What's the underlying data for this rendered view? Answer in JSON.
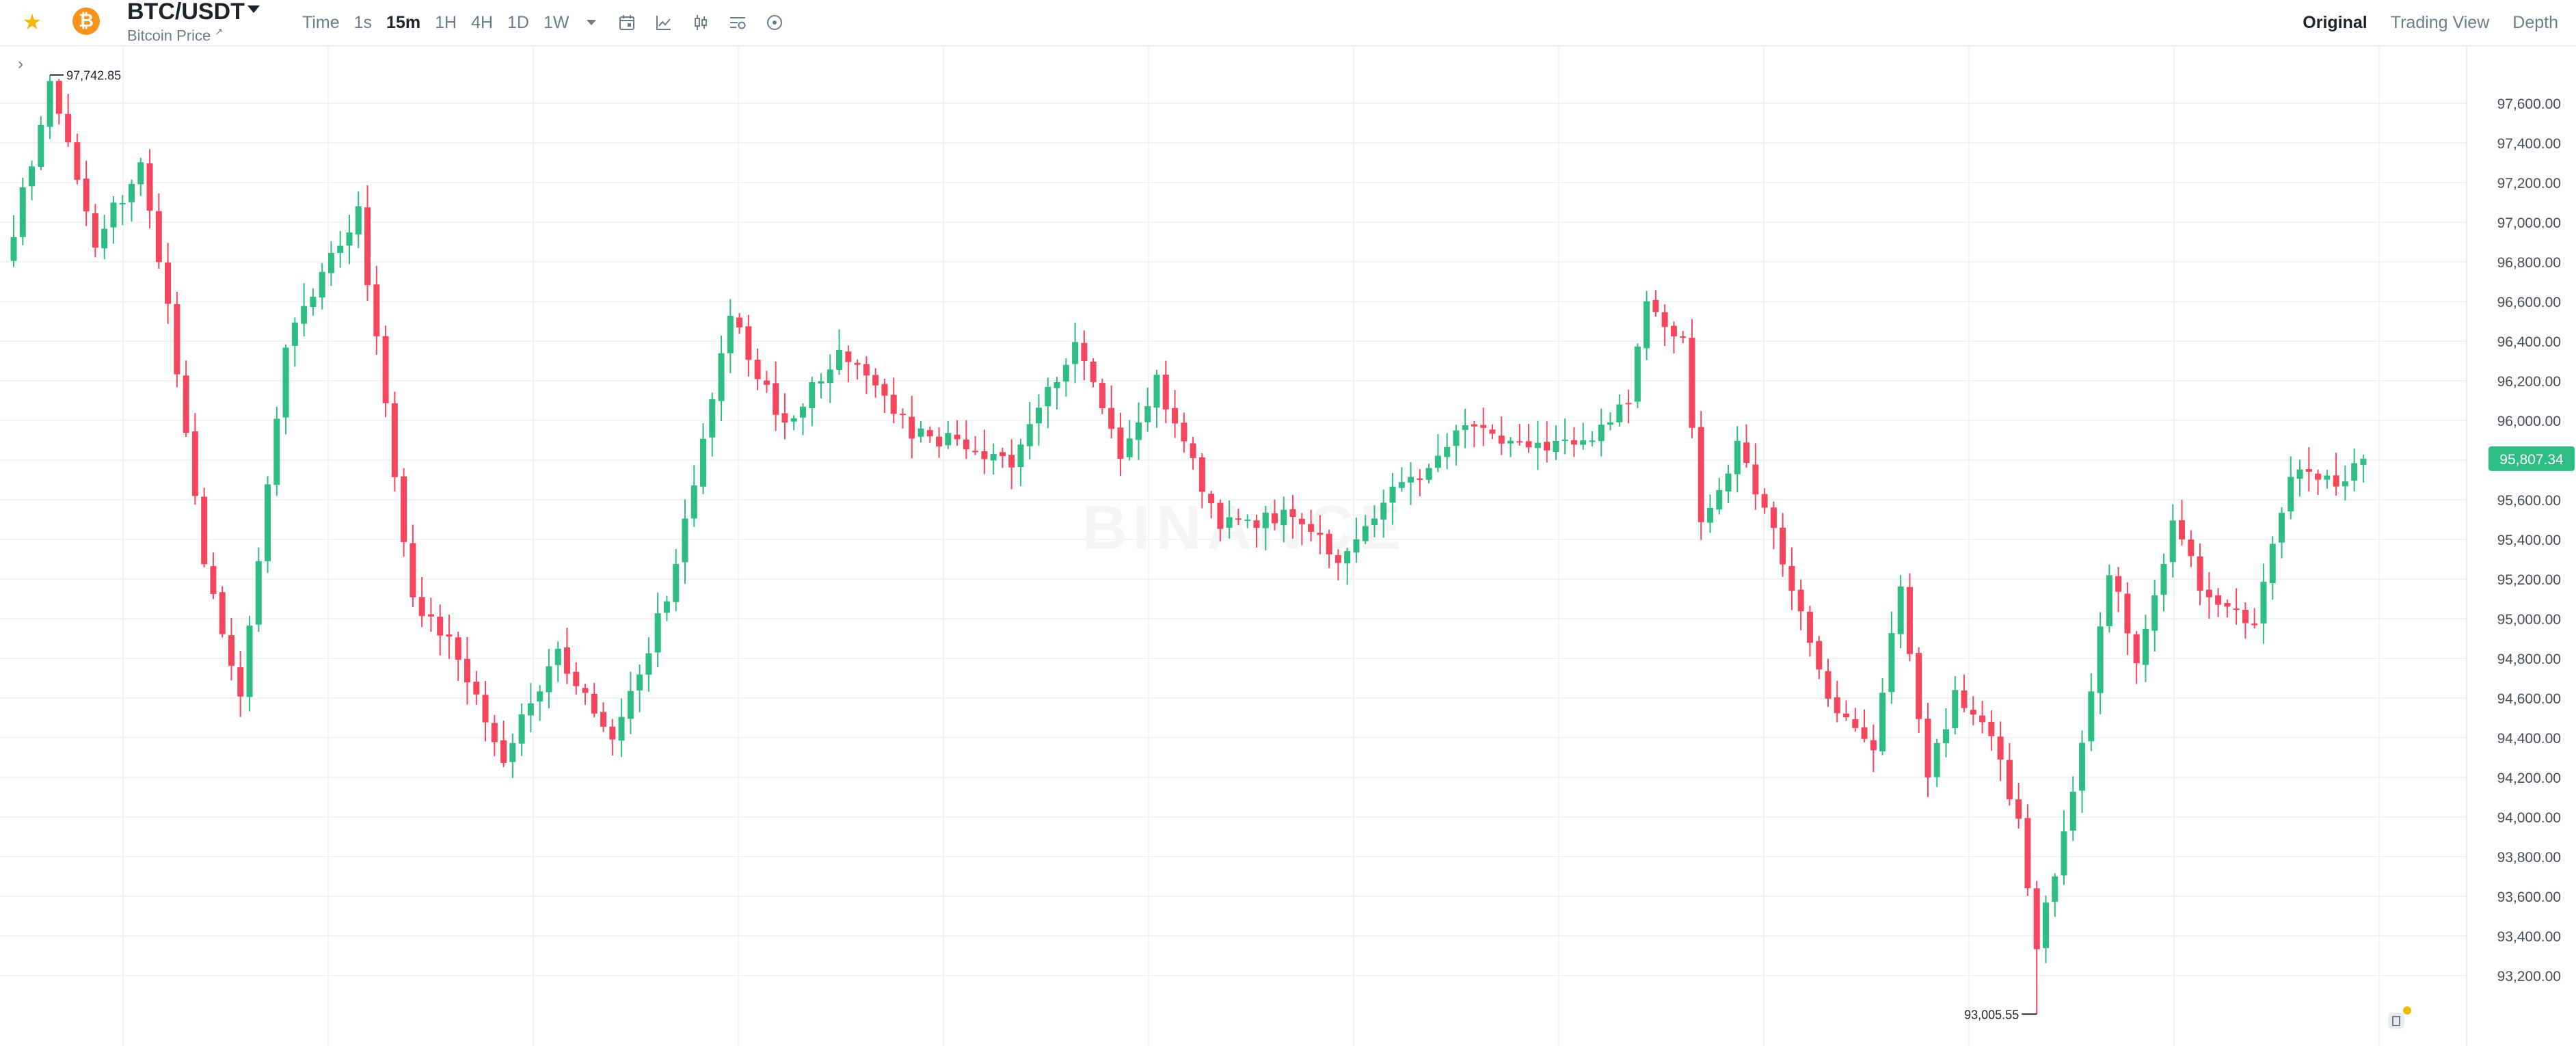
{
  "toolbar": {
    "favorite_icon": "star-icon",
    "coin_icon": "bitcoin-icon",
    "coin_glyph": "₿",
    "symbol": "BTC/USDT",
    "subtitle": "Bitcoin Price",
    "subtitle_link": "↗",
    "intervals": [
      "Time",
      "1s",
      "15m",
      "1H",
      "4H",
      "1D",
      "1W"
    ],
    "active_interval": "15m",
    "tools": [
      "calendar-icon",
      "line-chart-icon",
      "candlestick-icon",
      "indicator-settings-icon",
      "add-icon"
    ],
    "views": [
      "Original",
      "Trading View",
      "Depth"
    ],
    "active_view": "Original"
  },
  "chart": {
    "collapse_glyph": "›",
    "watermark": "BINANCE",
    "high_label": "97,742.85",
    "low_label": "93,005.55",
    "current_price": "95,807.34",
    "colors": {
      "up": "#2ebd85",
      "down": "#f6465d",
      "grid": "#f2f3f5",
      "axis_text": "#474d57",
      "badge": "#2ebd85"
    }
  },
  "chart_data": {
    "type": "candlestick",
    "symbol": "BTC/USDT",
    "interval": "15m",
    "ylim": [
      92900,
      97950
    ],
    "y_ticks": [
      "97,600.00",
      "97,400.00",
      "97,200.00",
      "97,000.00",
      "96,800.00",
      "96,600.00",
      "96,400.00",
      "96,200.00",
      "96,000.00",
      "95,800.00",
      "95,600.00",
      "95,400.00",
      "95,200.00",
      "95,000.00",
      "94,800.00",
      "94,600.00",
      "94,400.00",
      "94,200.00",
      "94,000.00",
      "93,800.00",
      "93,600.00",
      "93,400.00",
      "93,200.00"
    ],
    "high": 97742.85,
    "low": 93005.55,
    "last": 95807.34,
    "close_anchors": [
      [
        0,
        96950
      ],
      [
        4,
        97690
      ],
      [
        9,
        96900
      ],
      [
        14,
        97300
      ],
      [
        17,
        96600
      ],
      [
        21,
        95300
      ],
      [
        25,
        94600
      ],
      [
        30,
        96400
      ],
      [
        38,
        97050
      ],
      [
        44,
        95100
      ],
      [
        48,
        94900
      ],
      [
        54,
        94300
      ],
      [
        60,
        94850
      ],
      [
        66,
        94350
      ],
      [
        73,
        95250
      ],
      [
        79,
        96550
      ],
      [
        85,
        95950
      ],
      [
        91,
        96350
      ],
      [
        99,
        95950
      ],
      [
        110,
        95800
      ],
      [
        117,
        96380
      ],
      [
        122,
        95850
      ],
      [
        126,
        96200
      ],
      [
        133,
        95470
      ],
      [
        142,
        95520
      ],
      [
        146,
        95250
      ],
      [
        151,
        95580
      ],
      [
        160,
        95950
      ],
      [
        170,
        95880
      ],
      [
        174,
        95920
      ],
      [
        178,
        96130
      ],
      [
        180,
        96630
      ],
      [
        184,
        96400
      ],
      [
        186,
        95450
      ],
      [
        190,
        95860
      ],
      [
        194,
        95420
      ],
      [
        200,
        94600
      ],
      [
        205,
        94300
      ],
      [
        208,
        95200
      ],
      [
        211,
        94200
      ],
      [
        214,
        94600
      ],
      [
        218,
        94400
      ],
      [
        221,
        93950
      ],
      [
        223,
        93350
      ],
      [
        227,
        94100
      ],
      [
        231,
        95250
      ],
      [
        234,
        94820
      ],
      [
        238,
        95480
      ],
      [
        242,
        95080
      ],
      [
        247,
        95000
      ],
      [
        251,
        95750
      ],
      [
        256,
        95700
      ],
      [
        260,
        95810
      ]
    ]
  }
}
